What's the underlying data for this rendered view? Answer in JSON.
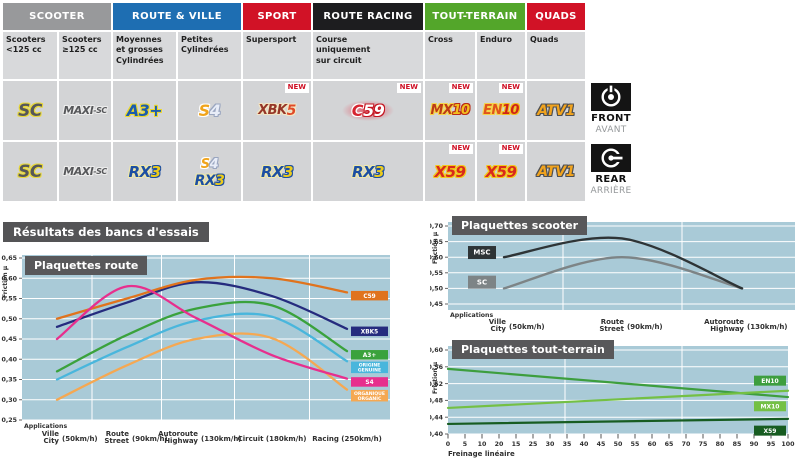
{
  "page": {
    "results_title": "Résultats des bancs d'essais"
  },
  "table": {
    "new_label": "NEW",
    "groups": [
      {
        "label": "SCOOTER"
      },
      {
        "label": "ROUTE & VILLE"
      },
      {
        "label": "SPORT"
      },
      {
        "label": "ROUTE RACING"
      },
      {
        "label": "TOUT-TERRAIN"
      },
      {
        "label": "QUADS"
      }
    ],
    "columns": [
      "Scooters\n<125 cc",
      "Scooters\n≥125 cc",
      "Moyennes\net grosses\nCylindrées",
      "Petites\nCylindrées",
      "Supersport",
      "Course\nuniquement\nsur circuit",
      "Cross",
      "Enduro",
      "Quads"
    ],
    "products": {
      "sc": "SC",
      "maxi": {
        "a": "MAXI",
        "b": "-SC"
      },
      "a3": "A3+",
      "s4": {
        "a": "S",
        "b": "4"
      },
      "xbk5": {
        "a": "XBK",
        "b": "5"
      },
      "c59": {
        "a": "C",
        "b": "59"
      },
      "mx10": {
        "a": "MX",
        "b": "10"
      },
      "en10": {
        "a": "EN",
        "b": "10"
      },
      "atv1": "ATV1",
      "rx3": {
        "a": "RX",
        "b": "3"
      },
      "x59": "X59"
    },
    "front_badge": {
      "title": "FRONT",
      "subtitle": "AVANT"
    },
    "rear_badge": {
      "title": "REAR",
      "subtitle": "ARRIÈRE"
    }
  },
  "chart_data": [
    {
      "type": "line",
      "title": "Plaquettes route",
      "ylabel": "Friction µ",
      "xlabel": "Applications",
      "ylim": [
        0.25,
        0.65
      ],
      "yticks": [
        "0,65",
        "0,60",
        "0,55",
        "0,50",
        "0,45",
        "0,40",
        "0,35",
        "0,30",
        "0,25"
      ],
      "categories": [
        {
          "fr": "Ville",
          "en": "City",
          "speed": "(50km/h)"
        },
        {
          "fr": "Route",
          "en": "Street",
          "speed": "(90km/h)"
        },
        {
          "fr": "Autoroute",
          "en": "Highway",
          "speed": "(130km/h)"
        },
        {
          "fr": "Circuit",
          "en": "",
          "speed": "(180km/h)"
        },
        {
          "fr": "Racing",
          "en": "",
          "speed": "(250km/h)"
        }
      ],
      "series": [
        {
          "name": "ORGANIQUE",
          "color": "#f5a852",
          "values": [
            0.3,
            0.385,
            0.45,
            0.452,
            0.325
          ],
          "legend_at": 0.31,
          "legend_lines": [
            "ORGANIQUE",
            "ORGANIC"
          ]
        },
        {
          "name": "ORIGINE",
          "color": "#49b6dc",
          "values": [
            0.35,
            0.43,
            0.495,
            0.505,
            0.395
          ],
          "legend_at": 0.38,
          "legend_lines": [
            "ORIGINE",
            "GENUINE"
          ]
        },
        {
          "name": "A3+",
          "color": "#3aa23c",
          "values": [
            0.37,
            0.46,
            0.525,
            0.533,
            0.42
          ],
          "legend_at": 0.411,
          "legend_lines": [
            "A3+"
          ]
        },
        {
          "name": "XBK5",
          "color": "#252b7e",
          "values": [
            0.48,
            0.54,
            0.59,
            0.556,
            0.475
          ],
          "legend_at": 0.469,
          "legend_lines": [
            "XBK5"
          ]
        },
        {
          "name": "C59",
          "color": "#e0731d",
          "values": [
            0.5,
            0.55,
            0.596,
            0.6,
            0.565
          ],
          "legend_at": 0.557,
          "legend_lines": [
            "C59"
          ]
        },
        {
          "name": "S4",
          "color": "#e72f8d",
          "values": [
            0.45,
            0.58,
            0.502,
            0.41,
            0.352
          ],
          "legend_at": 0.344,
          "legend_lines": [
            "S4"
          ]
        }
      ]
    },
    {
      "type": "line",
      "title": "Plaquettes scooter",
      "ylabel": "Friction µ",
      "xlabel": "Applications",
      "ylim": [
        0.45,
        0.7
      ],
      "yticks": [
        "0,70",
        "0,65",
        "0,60",
        "0,55",
        "0,50",
        "0,45"
      ],
      "categories": [
        {
          "fr": "Ville",
          "en": "City",
          "speed": "(50km/h)"
        },
        {
          "fr": "Route",
          "en": "Street",
          "speed": "(90km/h)"
        },
        {
          "fr": "Autoroute",
          "en": "Highway",
          "speed": "(130km/h)"
        }
      ],
      "series": [
        {
          "name": "SC",
          "color": "#7d8486",
          "values": [
            0.5,
            0.6,
            0.5
          ],
          "legend_at": 0.52,
          "legend_lines": [
            "SC"
          ]
        },
        {
          "name": "MSC",
          "color": "#2e3436",
          "values": [
            0.6,
            0.66,
            0.5
          ],
          "legend_at": 0.615,
          "legend_lines": [
            "MSC"
          ]
        }
      ]
    },
    {
      "type": "line",
      "title": "Plaquettes tout-terrain",
      "ylabel": "Friction µ",
      "xlabel": "Freinage linéaire",
      "ylim": [
        0.4,
        0.6
      ],
      "xlim": [
        0,
        100
      ],
      "yticks": [
        "0,60",
        "0,56",
        "0,52",
        "0,48",
        "0,44",
        "0,40"
      ],
      "xticks": [
        "0",
        "5",
        "10",
        "20",
        "15",
        "25",
        "30",
        "35",
        "40",
        "45",
        "50",
        "55",
        "60",
        "65",
        "70",
        "75",
        "80",
        "85",
        "90",
        "95",
        "100"
      ],
      "series": [
        {
          "name": "EN10",
          "color": "#3d9e3e",
          "points": [
            [
              0,
              0.555
            ],
            [
              100,
              0.488
            ]
          ],
          "legend_at": 0.527,
          "legend_lines": [
            "EN10"
          ]
        },
        {
          "name": "MX10",
          "color": "#74c044",
          "points": [
            [
              0,
              0.462
            ],
            [
              100,
              0.503
            ]
          ],
          "legend_at": 0.466,
          "legend_lines": [
            "MX10"
          ]
        },
        {
          "name": "X59",
          "color": "#175c21",
          "points": [
            [
              0,
              0.424
            ],
            [
              100,
              0.436
            ]
          ],
          "legend_at": 0.408,
          "legend_lines": [
            "X59"
          ]
        }
      ]
    }
  ]
}
